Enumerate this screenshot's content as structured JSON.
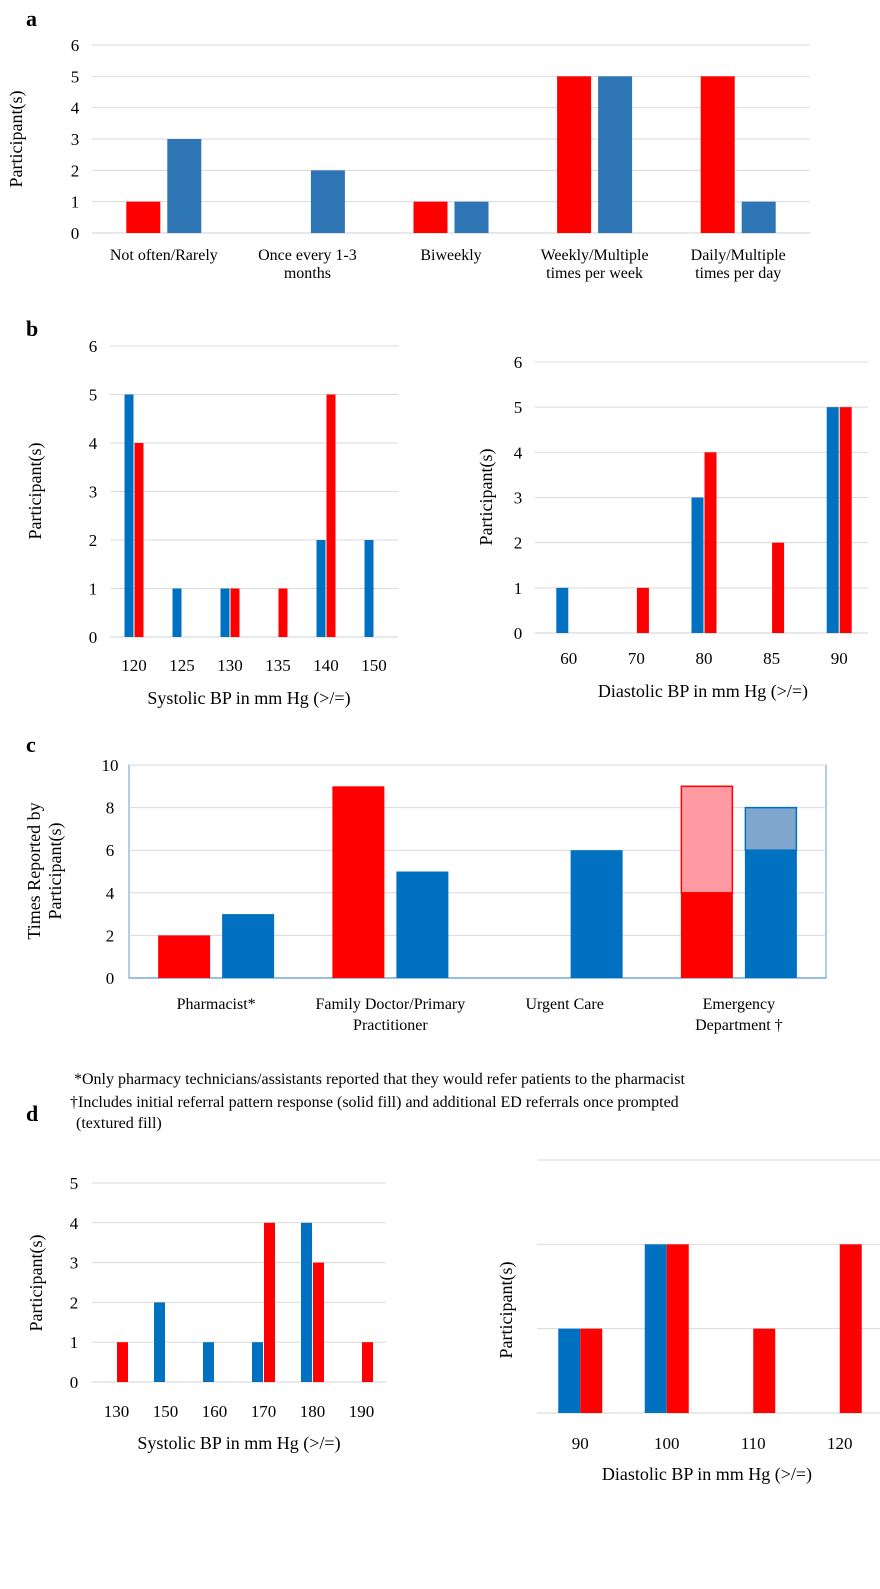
{
  "panels": [
    "a",
    "b",
    "c",
    "d"
  ],
  "colors": {
    "red": "#ff0000",
    "blue_a": "#2e75b6",
    "blue": "#0070c0",
    "red_light": "#ff9aa2",
    "blue_light": "#7fa6cc",
    "grid": "#d9d9d9",
    "frame": "#5b9bd5"
  },
  "notes": [
    "*Only pharmacy technicians/assistants reported that they would refer patients to the pharmacist",
    "†Includes initial referral pattern response (solid fill) and additional ED referrals once prompted",
    "(textured fill)"
  ],
  "chart_data": [
    {
      "id": "a",
      "type": "bar",
      "categories": [
        "Not often/Rarely",
        "Once every 1-3 months",
        "Biweekly",
        "Weekly/Multiple times per week",
        "Daily/Multiple times per day"
      ],
      "category_lines": [
        [
          "Not often/Rarely"
        ],
        [
          "Once every 1-3",
          "months"
        ],
        [
          "Biweekly"
        ],
        [
          "Weekly/Multiple",
          "times per week"
        ],
        [
          "Daily/Multiple",
          "times per day"
        ]
      ],
      "series": [
        {
          "color": "red",
          "values": [
            1,
            0,
            1,
            5,
            5
          ]
        },
        {
          "color": "blue_a",
          "values": [
            3,
            2,
            1,
            5,
            1
          ]
        }
      ],
      "xlabel": "",
      "ylabel": "Participant(s)",
      "ylim": [
        0,
        6
      ],
      "yticks": [
        0,
        1,
        2,
        3,
        4,
        5,
        6
      ],
      "grid": true
    },
    {
      "id": "b-left",
      "type": "bar",
      "categories": [
        "120",
        "125",
        "130",
        "135",
        "140",
        "150"
      ],
      "series": [
        {
          "color": "blue",
          "values": [
            5,
            1,
            1,
            0,
            2,
            2
          ]
        },
        {
          "color": "red",
          "values": [
            4,
            0,
            1,
            1,
            5,
            0
          ]
        }
      ],
      "xlabel": "Systolic BP in mm Hg (>/=)",
      "ylabel": "Participant(s)",
      "ylim": [
        0,
        6
      ],
      "yticks": [
        0,
        1,
        2,
        3,
        4,
        5,
        6
      ],
      "grid": true
    },
    {
      "id": "b-right",
      "type": "bar",
      "categories": [
        "60",
        "70",
        "80",
        "85",
        "90"
      ],
      "series": [
        {
          "color": "blue",
          "values": [
            1,
            0,
            3,
            0,
            5
          ]
        },
        {
          "color": "red",
          "values": [
            0,
            1,
            4,
            2,
            5
          ]
        }
      ],
      "xlabel": "Diastolic BP in mm Hg (>/=)",
      "ylabel": "Participant(s)",
      "ylim": [
        0,
        6
      ],
      "yticks": [
        0,
        1,
        2,
        3,
        4,
        5,
        6
      ],
      "grid": true
    },
    {
      "id": "c",
      "type": "bar",
      "categories": [
        "Pharmacist*",
        "Family Doctor/Primary Practitioner",
        "Urgent Care",
        "Emergency Department †"
      ],
      "category_lines": [
        [
          "Pharmacist*"
        ],
        [
          "Family Doctor/Primary",
          "Practitioner"
        ],
        [
          "Urgent Care"
        ],
        [
          "Emergency",
          "Department †"
        ]
      ],
      "series": [
        {
          "color": "red",
          "values": [
            2,
            9,
            0,
            4
          ],
          "prompted": [
            0,
            0,
            0,
            5
          ]
        },
        {
          "color": "blue",
          "values": [
            3,
            5,
            6,
            6
          ],
          "prompted": [
            0,
            0,
            0,
            2
          ]
        }
      ],
      "xlabel": "",
      "ylabel_lines": [
        "Times Reported by",
        "Participant(s)"
      ],
      "ylim": [
        0,
        10
      ],
      "yticks": [
        0,
        2,
        4,
        6,
        8,
        10
      ],
      "grid": true
    },
    {
      "id": "d-left",
      "type": "bar",
      "categories": [
        "130",
        "150",
        "160",
        "170",
        "180",
        "190"
      ],
      "series": [
        {
          "color": "blue",
          "values": [
            0,
            2,
            1,
            1,
            4,
            0
          ]
        },
        {
          "color": "red",
          "values": [
            1,
            0,
            0,
            4,
            3,
            1
          ]
        }
      ],
      "xlabel": "Systolic BP in mm Hg (>/=)",
      "ylabel": "Participant(s)",
      "ylim": [
        0,
        5
      ],
      "yticks": [
        0,
        1,
        2,
        3,
        4,
        5
      ],
      "grid": true
    },
    {
      "id": "d-right",
      "type": "bar",
      "categories": [
        "90",
        "100",
        "110",
        "120"
      ],
      "series": [
        {
          "color": "blue",
          "values": [
            1,
            2,
            0,
            0
          ]
        },
        {
          "color": "red",
          "values": [
            1,
            2,
            1,
            2
          ]
        }
      ],
      "xlabel": "Diastolic BP in mm Hg (>/=)",
      "ylabel": "Participant(s)",
      "ylim": [
        0,
        3
      ],
      "yticks": [],
      "grid": true
    }
  ]
}
